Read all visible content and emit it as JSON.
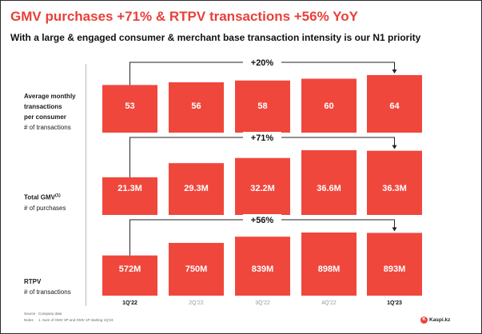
{
  "title": "GMV purchases +71% & RTPV transactions +56% YoY",
  "subtitle": "With a large & engaged consumer & merchant base transaction intensity is our N1 priority",
  "colors": {
    "bar": "#f0473d",
    "accent": "#e8413a",
    "bracket": "#222222",
    "axis_highlight": "#111111",
    "axis_dim": "#9a9a9a"
  },
  "rows": [
    {
      "label_lines": [
        "Average monthly",
        "transactions",
        "per consumer"
      ],
      "unit": "# of transactions",
      "superscript": ""
    },
    {
      "label_lines": [
        "Total GMV"
      ],
      "unit": "# of purchases",
      "superscript": "(1)"
    },
    {
      "label_lines": [
        "RTPV"
      ],
      "unit": "# of transactions",
      "superscript": ""
    }
  ],
  "chart_data": [
    {
      "type": "bar",
      "categories": [
        "1Q'22",
        "2Q'22",
        "3Q'22",
        "4Q'22",
        "1Q'23"
      ],
      "values": [
        53,
        56,
        58,
        60,
        64
      ],
      "value_labels": [
        "53",
        "56",
        "58",
        "60",
        "64"
      ],
      "growth_label": "+20%",
      "ylim": [
        0,
        64
      ]
    },
    {
      "type": "bar",
      "categories": [
        "1Q'22",
        "2Q'22",
        "3Q'22",
        "4Q'22",
        "1Q'23"
      ],
      "values": [
        21.3,
        29.3,
        32.2,
        36.6,
        36.3
      ],
      "value_labels": [
        "21.3M",
        "29.3M",
        "32.2M",
        "36.6M",
        "36.3M"
      ],
      "growth_label": "+71%",
      "ylim": [
        0,
        36.6
      ]
    },
    {
      "type": "bar",
      "categories": [
        "1Q'22",
        "2Q'22",
        "3Q'22",
        "4Q'22",
        "1Q'23"
      ],
      "values": [
        572,
        750,
        839,
        898,
        893
      ],
      "value_labels": [
        "572M",
        "750M",
        "839M",
        "898M",
        "893M"
      ],
      "growth_label": "+56%",
      "ylim": [
        0,
        898
      ]
    }
  ],
  "x_axis": {
    "highlighted": [
      "1Q'22",
      "1Q'23"
    ]
  },
  "footnotes": [
    {
      "key": "Source",
      "text": "Company data"
    },
    {
      "key": "Notes",
      "text": "1.  Sum of GMV 3P and GMV 1P starting 1Q'23"
    }
  ],
  "logo": {
    "mark": "K",
    "text": "Kaspi.kz"
  }
}
